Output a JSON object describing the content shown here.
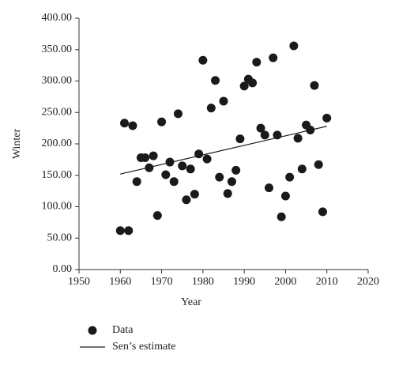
{
  "chart_data": {
    "type": "scatter",
    "x_label": "Year",
    "y_label": "Winter",
    "xlim": [
      1950,
      2020
    ],
    "xticks": [
      1950,
      1960,
      1970,
      1980,
      1990,
      2000,
      2010,
      2020
    ],
    "ylim": [
      0,
      400
    ],
    "yticks": [
      {
        "value": 0,
        "label": "0.00"
      },
      {
        "value": 50,
        "label": "50.00"
      },
      {
        "value": 100,
        "label": "100.00"
      },
      {
        "value": 150,
        "label": "150.00"
      },
      {
        "value": 200,
        "label": "200.00"
      },
      {
        "value": 250,
        "label": "250.00"
      },
      {
        "value": 300,
        "label": "300.00"
      },
      {
        "value": 350,
        "label": "350.00"
      },
      {
        "value": 400,
        "label": "400.00"
      }
    ],
    "series": [
      {
        "name": "Data",
        "style": "markers",
        "color": "#1a1a1a",
        "x": [
          1960,
          1962,
          1961,
          1963,
          1964,
          1965,
          1966,
          1967,
          1968,
          1969,
          1970,
          1971,
          1972,
          1973,
          1974,
          1975,
          1976,
          1977,
          1978,
          1979,
          1980,
          1981,
          1982,
          1983,
          1984,
          1985,
          1986,
          1987,
          1988,
          1989,
          1990,
          1991,
          1992,
          1993,
          1994,
          1995,
          1996,
          1997,
          1998,
          1999,
          2000,
          2001,
          2002,
          2003,
          2004,
          2005,
          2006,
          2007,
          2008,
          2009,
          2010
        ],
        "values": [
          62,
          62,
          233,
          229,
          140,
          178,
          178,
          162,
          181,
          86,
          235,
          151,
          171,
          140,
          248,
          165,
          111,
          160,
          120,
          184,
          333,
          176,
          257,
          301,
          147,
          268,
          121,
          140,
          158,
          208,
          292,
          303,
          297,
          330,
          225,
          214,
          130,
          337,
          214,
          84,
          117,
          147,
          356,
          209,
          160,
          230,
          222,
          293,
          167,
          92,
          241
        ]
      },
      {
        "name": "Sen’s estimate",
        "style": "line",
        "color": "#1a1a1a",
        "x": [
          1960,
          2010
        ],
        "values": [
          152,
          228
        ]
      }
    ]
  }
}
